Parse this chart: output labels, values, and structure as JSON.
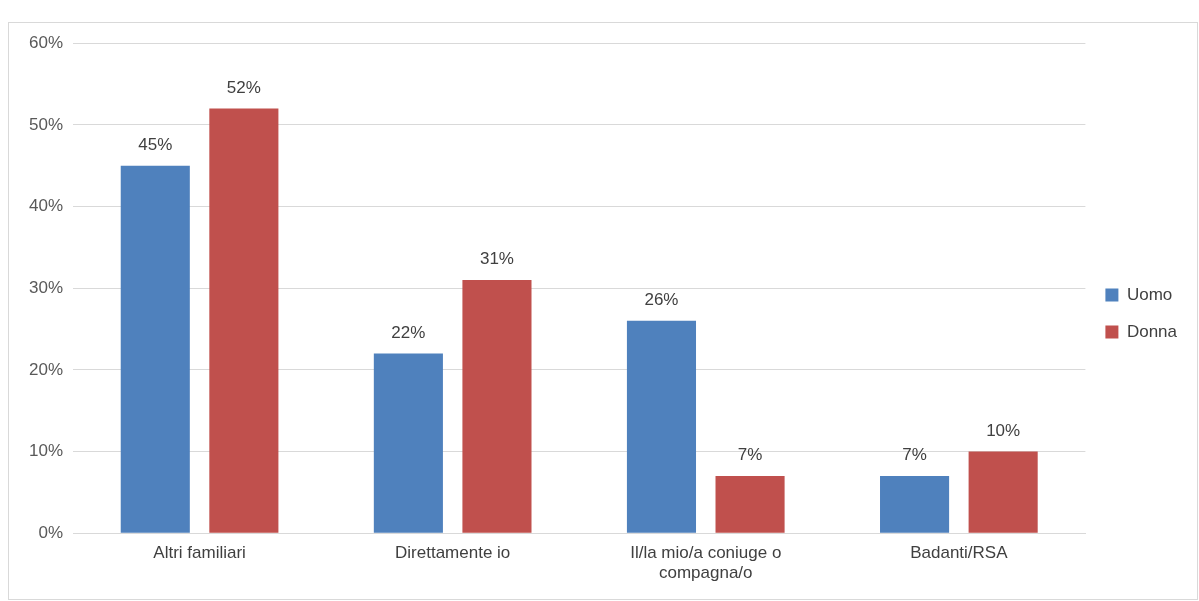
{
  "chart_data": {
    "type": "bar",
    "categories": [
      "Altri familiari",
      "Direttamente io",
      "Il/la mio/a coniuge o compagna/o",
      "Badanti/RSA"
    ],
    "series": [
      {
        "name": "Uomo",
        "color": "#4f81bd",
        "values": [
          45,
          22,
          26,
          7
        ],
        "value_labels": [
          "45%",
          "22%",
          "26%",
          "7%"
        ]
      },
      {
        "name": "Donna",
        "color": "#c0504d",
        "values": [
          52,
          31,
          7,
          10
        ],
        "value_labels": [
          "52%",
          "31%",
          "7%",
          "10%"
        ]
      }
    ],
    "ylim": [
      0,
      60
    ],
    "yticks": [
      {
        "value": 0,
        "label": "0%"
      },
      {
        "value": 10,
        "label": "10%"
      },
      {
        "value": 20,
        "label": "20%"
      },
      {
        "value": 30,
        "label": "30%"
      },
      {
        "value": 40,
        "label": "40%"
      },
      {
        "value": 50,
        "label": "50%"
      },
      {
        "value": 60,
        "label": "60%"
      }
    ],
    "grid": "y",
    "legend": "right"
  }
}
